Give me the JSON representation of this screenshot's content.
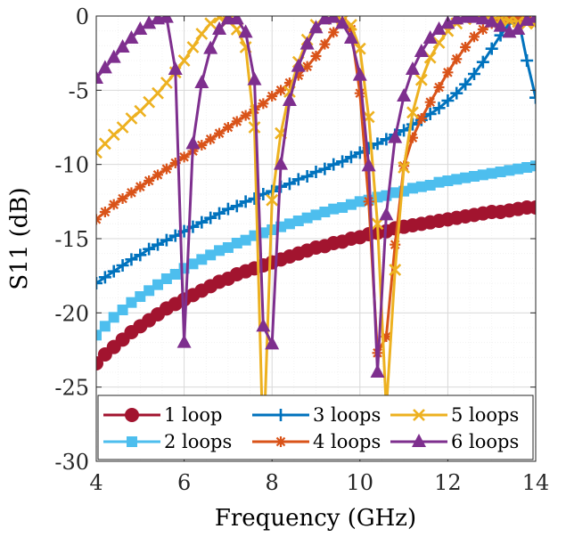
{
  "chart_data": {
    "type": "line",
    "title": "",
    "xlabel": "Frequency (GHz)",
    "ylabel": "S11 (dB)",
    "xlim": [
      4,
      14
    ],
    "ylim": [
      -30,
      0
    ],
    "x_ticks": [
      "4",
      "6",
      "8",
      "10",
      "12",
      "14"
    ],
    "y_ticks": [
      "0",
      "-5",
      "-10",
      "-15",
      "-20",
      "-25",
      "-30"
    ],
    "grid": true,
    "legend_position": "bottom",
    "x": [
      4.0,
      4.2,
      4.4,
      4.6,
      4.8,
      5.0,
      5.2,
      5.4,
      5.6,
      5.8,
      6.0,
      6.2,
      6.4,
      6.6,
      6.8,
      7.0,
      7.2,
      7.4,
      7.6,
      7.8,
      8.0,
      8.2,
      8.4,
      8.6,
      8.8,
      9.0,
      9.2,
      9.4,
      9.6,
      9.8,
      10.0,
      10.2,
      10.4,
      10.6,
      10.8,
      11.0,
      11.2,
      11.4,
      11.6,
      11.8,
      12.0,
      12.2,
      12.4,
      12.6,
      12.8,
      13.0,
      13.2,
      13.4,
      13.6,
      13.8,
      14.0
    ],
    "series": [
      {
        "name": "1 loop",
        "color": "#A2142F",
        "marker": "circle",
        "values": [
          -23.4,
          -22.8,
          -22.3,
          -21.8,
          -21.3,
          -20.9,
          -20.5,
          -20.1,
          -19.7,
          -19.4,
          -19.1,
          -18.8,
          -18.5,
          -18.2,
          -17.9,
          -17.7,
          -17.4,
          -17.2,
          -17.0,
          -16.8,
          -16.6,
          -16.4,
          -16.2,
          -16.0,
          -15.8,
          -15.6,
          -15.5,
          -15.3,
          -15.2,
          -15.0,
          -14.9,
          -14.7,
          -14.6,
          -14.5,
          -14.3,
          -14.2,
          -14.1,
          -14.0,
          -13.9,
          -13.8,
          -13.7,
          -13.6,
          -13.5,
          -13.4,
          -13.3,
          -13.2,
          -13.2,
          -13.1,
          -13.0,
          -12.9,
          -12.9
        ]
      },
      {
        "name": "2 loops",
        "color": "#4DBEEE",
        "marker": "square",
        "values": [
          -21.5,
          -20.9,
          -20.3,
          -19.8,
          -19.3,
          -18.9,
          -18.5,
          -18.1,
          -17.7,
          -17.4,
          -17.0,
          -16.7,
          -16.4,
          -16.1,
          -15.8,
          -15.6,
          -15.3,
          -15.1,
          -14.8,
          -14.6,
          -14.4,
          -14.2,
          -14.0,
          -13.8,
          -13.6,
          -13.4,
          -13.2,
          -13.0,
          -12.9,
          -12.7,
          -12.5,
          -12.4,
          -12.2,
          -12.1,
          -11.9,
          -11.8,
          -11.6,
          -11.5,
          -11.4,
          -11.2,
          -11.1,
          -11.0,
          -10.9,
          -10.8,
          -10.7,
          -10.6,
          -10.5,
          -10.4,
          -10.3,
          -10.2,
          -10.1
        ]
      },
      {
        "name": "3 loops",
        "color": "#0072BD",
        "marker": "plus",
        "values": [
          -18.0,
          -17.6,
          -17.2,
          -16.8,
          -16.4,
          -16.1,
          -15.7,
          -15.4,
          -15.1,
          -14.8,
          -14.5,
          -14.2,
          -13.9,
          -13.6,
          -13.3,
          -13.0,
          -12.8,
          -12.5,
          -12.3,
          -12.0,
          -11.8,
          -11.5,
          -11.3,
          -11.0,
          -10.8,
          -10.5,
          -10.3,
          -10.0,
          -9.8,
          -9.5,
          -9.2,
          -8.9,
          -8.6,
          -8.3,
          -8.0,
          -7.7,
          -7.3,
          -7.0,
          -6.6,
          -6.2,
          -5.7,
          -5.2,
          -4.6,
          -3.9,
          -3.1,
          -2.2,
          -1.3,
          -0.5,
          -0.1,
          -3.0,
          -5.5
        ]
      },
      {
        "name": "4 loops",
        "color": "#D95319",
        "marker": "asterisk",
        "values": [
          -13.7,
          -13.2,
          -12.7,
          -12.3,
          -11.9,
          -11.5,
          -11.1,
          -10.7,
          -10.3,
          -9.9,
          -9.5,
          -9.1,
          -8.7,
          -8.3,
          -7.9,
          -7.5,
          -7.1,
          -6.7,
          -6.3,
          -5.9,
          -5.4,
          -5.0,
          -4.5,
          -4.0,
          -3.4,
          -2.7,
          -1.9,
          -1.1,
          -0.4,
          -0.9,
          -5.2,
          -12.5,
          -22.7,
          -21.6,
          -15.4,
          -10.1,
          -8.2,
          -6.9,
          -5.8,
          -4.8,
          -3.8,
          -2.9,
          -2.1,
          -1.4,
          -0.9,
          -0.5,
          -0.3,
          -0.2,
          -0.2,
          -0.3,
          -0.4
        ]
      },
      {
        "name": "5 loops",
        "color": "#EDB120",
        "marker": "cross",
        "values": [
          -9.2,
          -8.6,
          -8.0,
          -7.5,
          -6.9,
          -6.4,
          -5.8,
          -5.2,
          -4.5,
          -3.8,
          -3.0,
          -2.1,
          -1.2,
          -0.5,
          -0.1,
          -0.3,
          -0.9,
          -2.1,
          -7.5,
          -29.5,
          -12.4,
          -7.9,
          -5.1,
          -3.1,
          -1.6,
          -0.6,
          -0.1,
          -0.2,
          -0.3,
          -0.6,
          -2.2,
          -6.8,
          -14.0,
          -26.5,
          -17.1,
          -10.2,
          -6.5,
          -4.3,
          -2.8,
          -1.8,
          -1.0,
          -0.5,
          -0.2,
          -0.1,
          -0.1,
          -0.1,
          -0.2,
          -0.3,
          -0.4,
          -0.5,
          -0.5
        ]
      },
      {
        "name": "6 loops",
        "color": "#7E2F8E",
        "marker": "triangle",
        "values": [
          -4.2,
          -3.5,
          -2.8,
          -2.1,
          -1.5,
          -0.9,
          -0.5,
          -0.2,
          -0.1,
          -3.6,
          -22.0,
          -8.6,
          -4.5,
          -2.2,
          -0.9,
          -0.2,
          -0.2,
          -1.1,
          -4.3,
          -20.9,
          -22.1,
          -10.0,
          -5.7,
          -3.4,
          -1.9,
          -0.8,
          -0.2,
          -0.1,
          -0.5,
          -1.5,
          -4.0,
          -10.1,
          -24.0,
          -13.4,
          -8.2,
          -5.4,
          -3.6,
          -2.4,
          -1.5,
          -0.9,
          -0.5,
          -0.2,
          -0.1,
          -0.1,
          -0.2,
          -0.4,
          -0.7,
          -1.1,
          -0.9,
          -0.3,
          -0.1
        ]
      }
    ]
  }
}
